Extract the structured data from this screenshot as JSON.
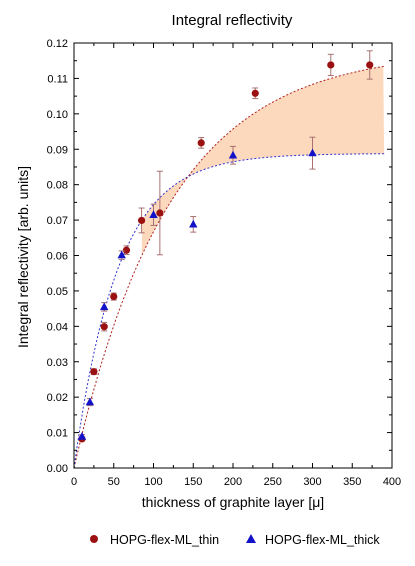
{
  "chart_data": {
    "type": "scatter",
    "title": "Integral reflectivity",
    "xlabel": "thickness of graphite layer [μ]",
    "ylabel": "Integral reflectivity [arb. units]",
    "xlim": [
      0,
      400
    ],
    "ylim": [
      0,
      0.12
    ],
    "x_ticks": [
      "0",
      "50",
      "100",
      "150",
      "200",
      "250",
      "300",
      "350",
      "400"
    ],
    "y_ticks": [
      "0.00",
      "0.01",
      "0.02",
      "0.03",
      "0.04",
      "0.05",
      "0.06",
      "0.07",
      "0.08",
      "0.09",
      "0.10",
      "0.11",
      "0.12"
    ],
    "grid": false,
    "legend": "bottom",
    "series": [
      {
        "name": "HOPG-flex-ML_thin",
        "marker": "circle",
        "color": "#9b1010",
        "points": [
          {
            "x": 10,
            "y": 0.0082,
            "err": 0.0005
          },
          {
            "x": 25,
            "y": 0.0272,
            "err": 0.0008
          },
          {
            "x": 38,
            "y": 0.0399,
            "err": 0.0012
          },
          {
            "x": 50,
            "y": 0.0484,
            "err": 0.001
          },
          {
            "x": 66,
            "y": 0.0615,
            "err": 0.0012
          },
          {
            "x": 85,
            "y": 0.0699,
            "err": 0.0035
          },
          {
            "x": 108,
            "y": 0.072,
            "err": 0.0118
          },
          {
            "x": 160,
            "y": 0.0918,
            "err": 0.0015
          },
          {
            "x": 228,
            "y": 0.1058,
            "err": 0.0015
          },
          {
            "x": 323,
            "y": 0.1138,
            "err": 0.003
          },
          {
            "x": 372,
            "y": 0.1138,
            "err": 0.004
          }
        ]
      },
      {
        "name": "HOPG-flex-ML_thick",
        "marker": "triangle",
        "color": "#1212c8",
        "points": [
          {
            "x": 10,
            "y": 0.0089,
            "err": 0.0005
          },
          {
            "x": 20,
            "y": 0.0186,
            "err": 0.001
          },
          {
            "x": 38,
            "y": 0.0455,
            "err": 0.0012
          },
          {
            "x": 60,
            "y": 0.0601,
            "err": 0.0012
          },
          {
            "x": 100,
            "y": 0.0715,
            "err": 0.003
          },
          {
            "x": 150,
            "y": 0.0688,
            "err": 0.0022
          },
          {
            "x": 200,
            "y": 0.0883,
            "err": 0.0025
          },
          {
            "x": 300,
            "y": 0.0889,
            "err": 0.0045
          }
        ]
      }
    ],
    "fit_curves": {
      "thin_asymptote": 0.118,
      "thick_asymptote": 0.0888,
      "thin_decay_length": 120,
      "thick_decay_length": 55,
      "thin_color": "#b02020",
      "thick_color": "#3030d0",
      "band_fill": "#fcd9bd"
    }
  }
}
